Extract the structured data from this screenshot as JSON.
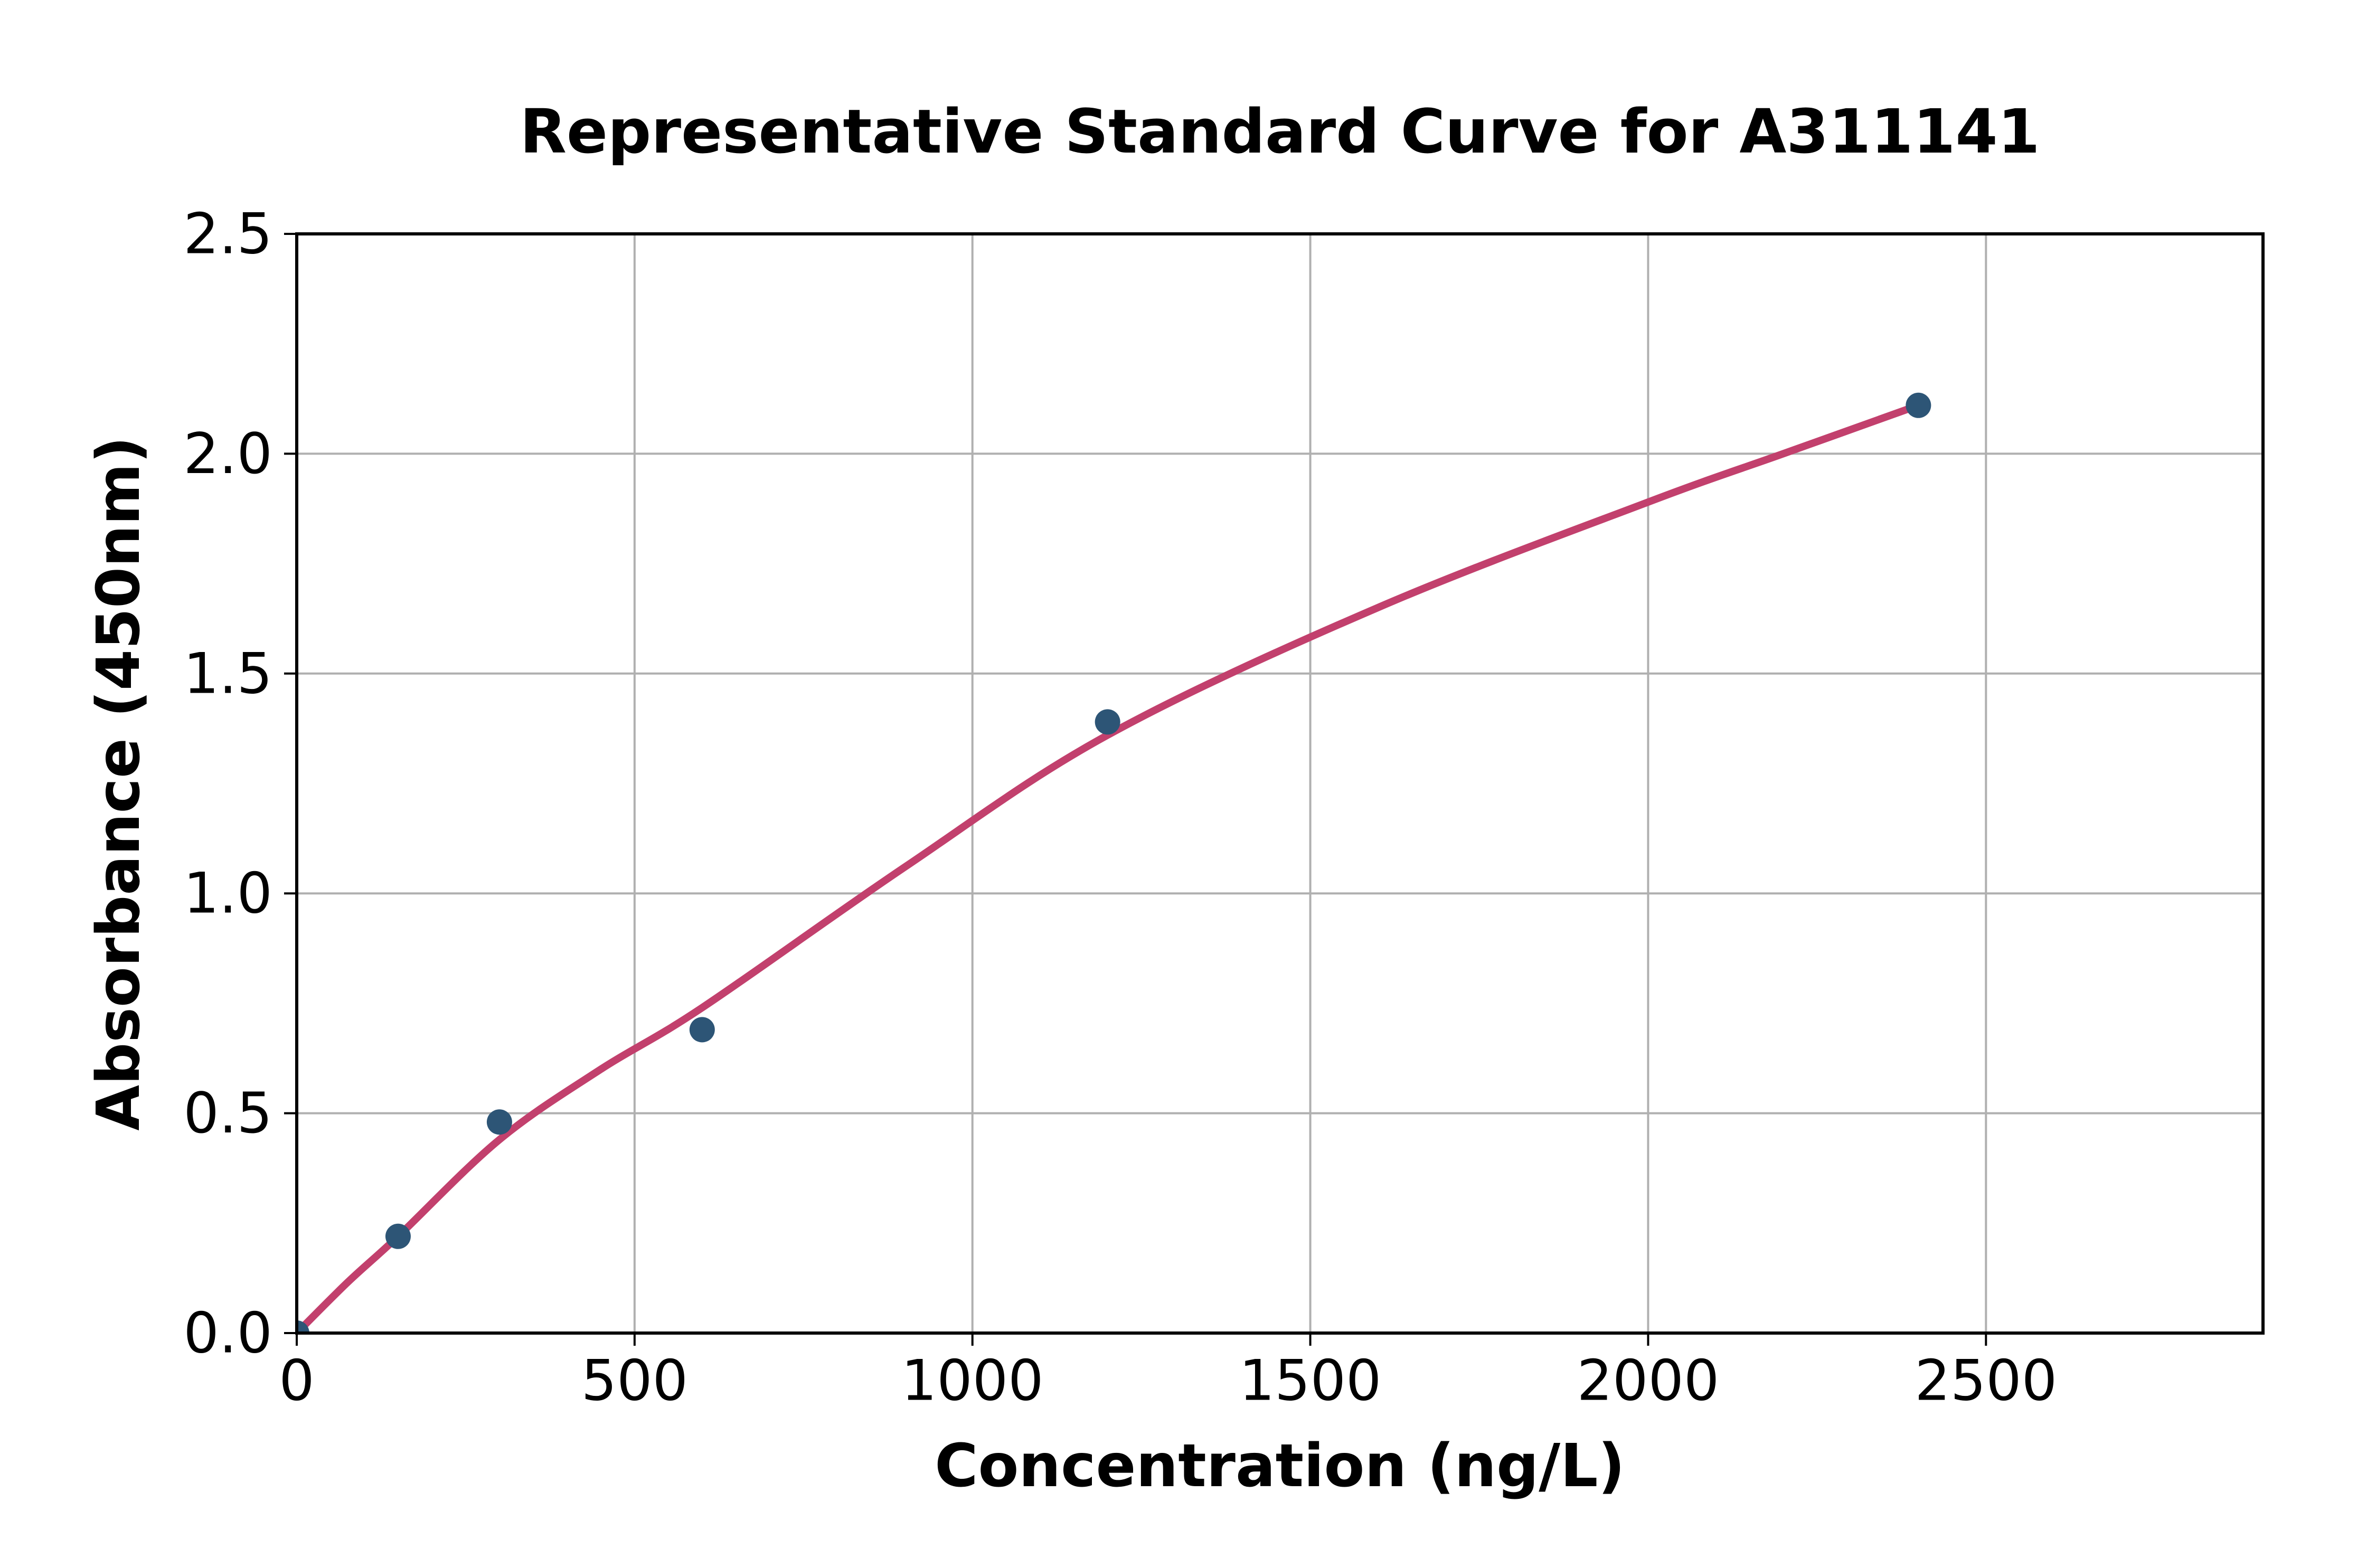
{
  "chart_data": {
    "type": "scatter",
    "title": "Representative Standard Curve for A311141",
    "xlabel": "Concentration (ng/L)",
    "ylabel": "Absorbance (450nm)",
    "xlim": [
      0,
      2910
    ],
    "ylim": [
      0,
      2.5
    ],
    "xticks": [
      0,
      500,
      1000,
      1500,
      2000,
      2500
    ],
    "yticks": [
      0.0,
      0.5,
      1.0,
      1.5,
      2.0,
      2.5
    ],
    "ytick_labels": [
      "0.0",
      "0.5",
      "1.0",
      "1.5",
      "2.0",
      "2.5"
    ],
    "grid": true,
    "legend": "none",
    "points": [
      {
        "x": 0,
        "y": 0.0
      },
      {
        "x": 150,
        "y": 0.22
      },
      {
        "x": 300,
        "y": 0.48
      },
      {
        "x": 600,
        "y": 0.69
      },
      {
        "x": 1200,
        "y": 1.39
      },
      {
        "x": 2400,
        "y": 2.11
      }
    ],
    "fit_curve": [
      [
        0,
        0.0
      ],
      [
        75,
        0.115
      ],
      [
        150,
        0.22
      ],
      [
        300,
        0.44
      ],
      [
        450,
        0.6
      ],
      [
        600,
        0.74
      ],
      [
        900,
        1.06
      ],
      [
        1200,
        1.36
      ],
      [
        1600,
        1.65
      ],
      [
        2000,
        1.89
      ],
      [
        2200,
        2.0
      ],
      [
        2400,
        2.11
      ]
    ],
    "colors": {
      "marker": "#2d5576",
      "curve": "#c2406d",
      "grid": "#b0b0b0",
      "axis": "#000000",
      "background": "#ffffff"
    }
  }
}
